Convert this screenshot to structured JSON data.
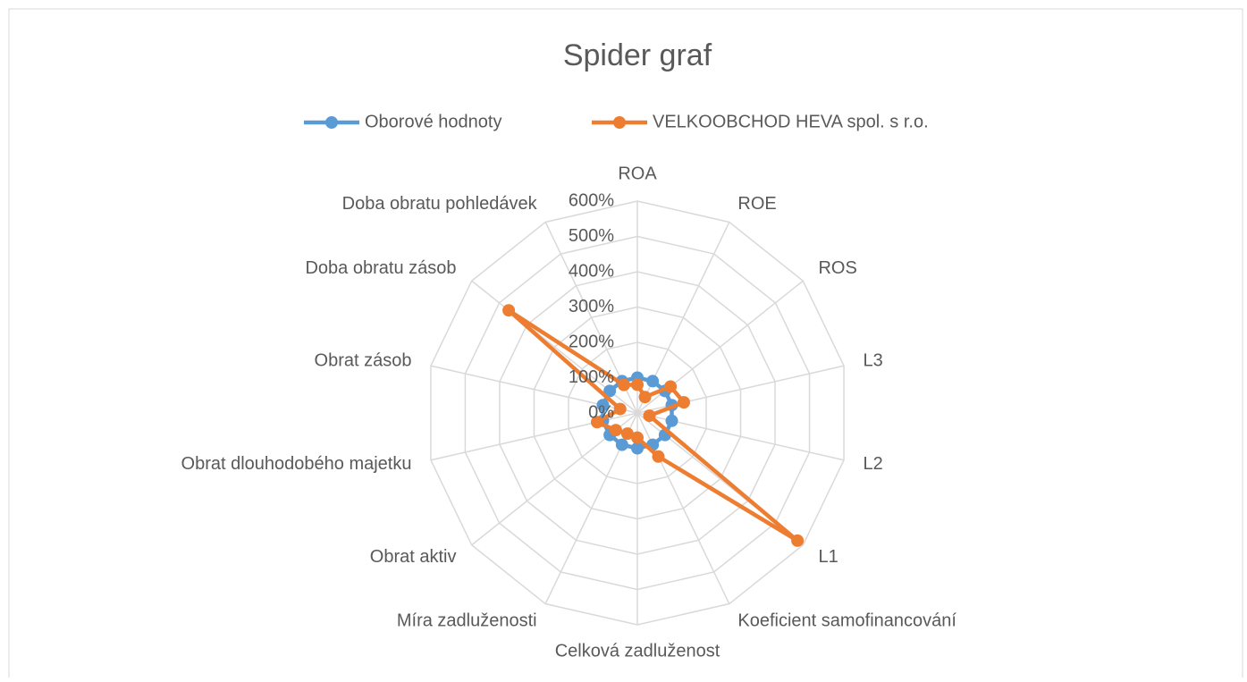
{
  "chart_data": {
    "type": "radar",
    "title": "Spider graf",
    "categories": [
      "ROA",
      "ROE",
      "ROS",
      "L3",
      "L2",
      "L1",
      "Koeficient samofinancování",
      "Celková zadluženost",
      "Míra zadluženosti",
      "Obrat aktiv",
      "Obrat dlouhodobého majetku",
      "Obrat zásob",
      "Doba obratu zásob",
      "Doba obratu pohledávek"
    ],
    "series": [
      {
        "name": "Oborové hodnoty",
        "color": "#5b9bd5",
        "values": [
          100,
          100,
          100,
          100,
          100,
          100,
          100,
          100,
          100,
          100,
          100,
          100,
          100,
          100
        ]
      },
      {
        "name": "VELKOOBCHOD HEVA spol. s r.o.",
        "color": "#ed7d31",
        "values": [
          80,
          50,
          120,
          135,
          35,
          580,
          137,
          70,
          65,
          78,
          117,
          50,
          466,
          88
        ]
      }
    ],
    "ylim": [
      0,
      600
    ],
    "yticks": [
      {
        "value": 0,
        "label": "0%"
      },
      {
        "value": 100,
        "label": "100%"
      },
      {
        "value": 200,
        "label": "200%"
      },
      {
        "value": 300,
        "label": "300%"
      },
      {
        "value": 400,
        "label": "400%"
      },
      {
        "value": 500,
        "label": "500%"
      },
      {
        "value": 600,
        "label": "600%"
      }
    ],
    "grid": true,
    "legend": "top"
  }
}
